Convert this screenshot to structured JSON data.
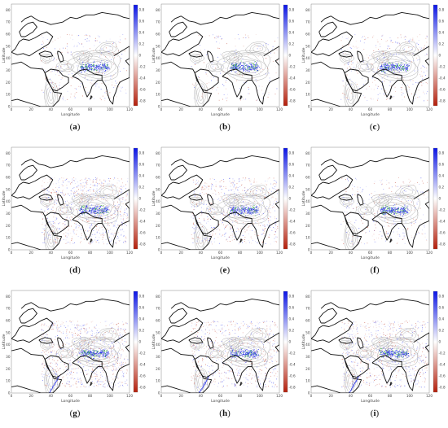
{
  "figure": {
    "axes": {
      "xlabel": "Longitude",
      "ylabel": "Latitude",
      "xlim": [
        0,
        120
      ],
      "ylim": [
        0,
        85
      ],
      "xticks": [
        "0",
        "20",
        "40",
        "60",
        "80",
        "100",
        "120"
      ],
      "yticks": [
        "0",
        "10",
        "20",
        "30",
        "40",
        "50",
        "60",
        "70",
        "80"
      ]
    },
    "colorbar": {
      "ticks": [
        "0.8",
        "0.6",
        "0.4",
        "0.2",
        "0",
        "-0.2",
        "-0.4",
        "-0.6",
        "-0.8"
      ],
      "colors": {
        "positive": "#0a14e6",
        "zero": "#ffffff",
        "negative": "#b41e0a"
      }
    },
    "panels": [
      {
        "label": "a",
        "spread": 0.35
      },
      {
        "label": "b",
        "spread": 0.25
      },
      {
        "label": "c",
        "spread": 0.45
      },
      {
        "label": "d",
        "spread": 1.0
      },
      {
        "label": "e",
        "spread": 0.8
      },
      {
        "label": "f",
        "spread": 0.4
      },
      {
        "label": "g",
        "spread": 1.0
      },
      {
        "label": "h",
        "spread": 0.85
      },
      {
        "label": "i",
        "spread": 0.9
      }
    ]
  }
}
